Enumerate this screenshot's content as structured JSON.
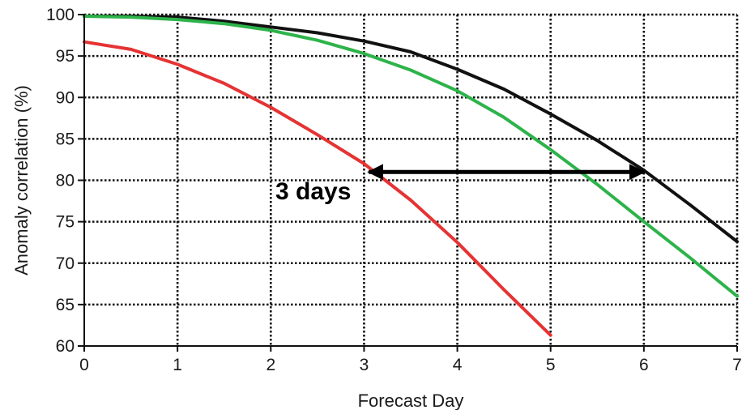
{
  "chart_data": {
    "type": "line",
    "title": "",
    "xlabel": "Forecast Day",
    "ylabel": "Anomaly correlation (%)",
    "xlim": [
      0,
      7
    ],
    "ylim": [
      60,
      100
    ],
    "xticks": [
      0,
      1,
      2,
      3,
      4,
      5,
      6,
      7
    ],
    "yticks": [
      60,
      65,
      70,
      75,
      80,
      85,
      90,
      95,
      100
    ],
    "grid": true,
    "legend": "none",
    "series": [
      {
        "color": "#111111",
        "x": [
          0,
          0.5,
          1,
          1.5,
          2,
          2.5,
          3,
          3.5,
          4,
          4.5,
          5,
          5.5,
          6,
          6.5,
          7
        ],
        "y": [
          99.8,
          99.8,
          99.7,
          99.2,
          98.5,
          97.8,
          96.8,
          95.5,
          93.4,
          91.0,
          88.0,
          84.8,
          81.2,
          77.0,
          72.6
        ]
      },
      {
        "color": "#2db34a",
        "x": [
          0,
          0.5,
          1,
          1.5,
          2,
          2.5,
          3,
          3.5,
          4,
          4.5,
          5,
          5.5,
          6,
          6.5,
          7
        ],
        "y": [
          99.8,
          99.7,
          99.4,
          98.9,
          98.1,
          96.9,
          95.3,
          93.3,
          90.8,
          87.6,
          83.7,
          79.5,
          75.0,
          70.6,
          66.0
        ]
      },
      {
        "color": "#e53333",
        "x": [
          0,
          0.5,
          1,
          1.5,
          2,
          2.5,
          3,
          3.5,
          4,
          4.5,
          5
        ],
        "y": [
          96.7,
          95.8,
          94.0,
          91.7,
          88.8,
          85.5,
          82.0,
          77.6,
          72.5,
          66.8,
          61.3
        ]
      }
    ],
    "annotations": [
      {
        "text": "3 days",
        "arrow": {
          "x_start": 3.05,
          "x_end": 6.0,
          "y": 81
        },
        "label_x": 2.05,
        "label_y": 77.5
      }
    ]
  }
}
